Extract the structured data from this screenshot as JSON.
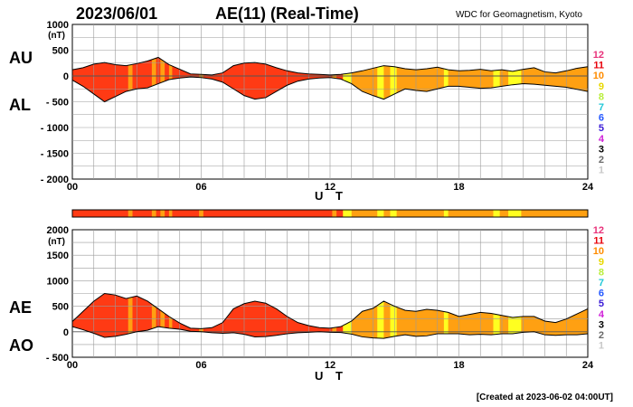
{
  "header": {
    "date": "2023/06/01",
    "title": "AE(11) (Real-Time)",
    "credit": "WDC for Geomagnetism, Kyoto"
  },
  "footer": {
    "created": "[Created at 2023-06-02 04:00UT]"
  },
  "legend": {
    "entries": [
      {
        "label": "12",
        "color": "#e8337b"
      },
      {
        "label": "11",
        "color": "#e8000b"
      },
      {
        "label": "10",
        "color": "#ff8c00"
      },
      {
        "label": "9",
        "color": "#e8d800"
      },
      {
        "label": "8",
        "color": "#b9ee3c"
      },
      {
        "label": "7",
        "color": "#22c8d8"
      },
      {
        "label": "6",
        "color": "#2458ff"
      },
      {
        "label": "5",
        "color": "#3a1ad6"
      },
      {
        "label": "4",
        "color": "#d020d8"
      },
      {
        "label": "3",
        "color": "#000000"
      },
      {
        "label": "2",
        "color": "#6a6a6a"
      },
      {
        "label": "1",
        "color": "#c8c8c8"
      }
    ]
  },
  "colors": {
    "red": "#ff3a14",
    "orange": "#ffa012",
    "yellow": "#ffff20"
  },
  "stations_band": [
    {
      "s": 0,
      "e": 2.6,
      "c": "red"
    },
    {
      "s": 2.6,
      "e": 2.8,
      "c": "orange"
    },
    {
      "s": 2.8,
      "e": 3.7,
      "c": "red"
    },
    {
      "s": 3.7,
      "e": 3.9,
      "c": "orange"
    },
    {
      "s": 3.9,
      "e": 4.1,
      "c": "red"
    },
    {
      "s": 4.1,
      "e": 4.3,
      "c": "orange"
    },
    {
      "s": 4.3,
      "e": 4.5,
      "c": "red"
    },
    {
      "s": 4.5,
      "e": 4.65,
      "c": "orange"
    },
    {
      "s": 4.65,
      "e": 5.9,
      "c": "red"
    },
    {
      "s": 5.9,
      "e": 6.1,
      "c": "orange"
    },
    {
      "s": 6.1,
      "e": 12.1,
      "c": "red"
    },
    {
      "s": 12.1,
      "e": 12.3,
      "c": "orange"
    },
    {
      "s": 12.3,
      "e": 12.6,
      "c": "red"
    },
    {
      "s": 12.6,
      "e": 13.0,
      "c": "yellow"
    },
    {
      "s": 13.0,
      "e": 14.2,
      "c": "orange"
    },
    {
      "s": 14.2,
      "e": 14.5,
      "c": "yellow"
    },
    {
      "s": 14.5,
      "e": 14.8,
      "c": "orange"
    },
    {
      "s": 14.8,
      "e": 15.1,
      "c": "yellow"
    },
    {
      "s": 15.1,
      "e": 17.3,
      "c": "orange"
    },
    {
      "s": 17.3,
      "e": 17.5,
      "c": "yellow"
    },
    {
      "s": 17.5,
      "e": 19.6,
      "c": "orange"
    },
    {
      "s": 19.6,
      "e": 19.9,
      "c": "yellow"
    },
    {
      "s": 19.9,
      "e": 20.3,
      "c": "orange"
    },
    {
      "s": 20.3,
      "e": 20.9,
      "c": "yellow"
    },
    {
      "s": 20.9,
      "e": 24,
      "c": "orange"
    }
  ],
  "chart_data": [
    {
      "type": "area",
      "name_upper": "AU",
      "name_lower": "AL",
      "unit": "(nT)",
      "xlabel": "U T",
      "xlim": [
        0,
        24
      ],
      "ylim": [
        -2000,
        1000
      ],
      "xticks": [
        0,
        6,
        12,
        18,
        24
      ],
      "xtick_labels": [
        "00",
        "06",
        "12",
        "18",
        "24"
      ],
      "yticks": [
        1000,
        500,
        0,
        -500,
        -1000,
        -1500,
        -2000
      ],
      "ytick_labels": [
        "1000",
        "500",
        "0",
        "- 500",
        "- 1000",
        "- 1500",
        "- 2000"
      ],
      "grid": true,
      "x": [
        0,
        0.5,
        1,
        1.5,
        2,
        2.5,
        3,
        3.5,
        4,
        4.5,
        5,
        5.5,
        6,
        6.5,
        7,
        7.5,
        8,
        8.5,
        9,
        9.5,
        10,
        10.5,
        11,
        11.5,
        12,
        12.5,
        13,
        13.5,
        14,
        14.5,
        15,
        15.5,
        16,
        16.5,
        17,
        17.5,
        18,
        18.5,
        19,
        19.5,
        20,
        20.5,
        21,
        21.5,
        22,
        22.5,
        23,
        23.5,
        24
      ],
      "upper": [
        120,
        160,
        230,
        260,
        220,
        200,
        240,
        290,
        360,
        220,
        130,
        40,
        30,
        20,
        60,
        200,
        250,
        260,
        230,
        160,
        100,
        60,
        40,
        30,
        20,
        30,
        60,
        100,
        150,
        200,
        180,
        140,
        120,
        140,
        170,
        120,
        100,
        110,
        130,
        100,
        120,
        90,
        130,
        160,
        80,
        60,
        100,
        150,
        180
      ],
      "lower": [
        -80,
        -200,
        -350,
        -500,
        -400,
        -300,
        -250,
        -230,
        -150,
        -70,
        -40,
        -20,
        -30,
        -60,
        -120,
        -250,
        -380,
        -450,
        -420,
        -300,
        -180,
        -100,
        -60,
        -40,
        -30,
        -60,
        -150,
        -300,
        -380,
        -450,
        -350,
        -250,
        -280,
        -300,
        -250,
        -200,
        -200,
        -220,
        -240,
        -230,
        -200,
        -170,
        -150,
        -160,
        -180,
        -200,
        -220,
        -260,
        -300
      ],
      "colors": [
        {
          "s": 0,
          "e": 2.6,
          "c": "red"
        },
        {
          "s": 2.6,
          "e": 2.8,
          "c": "orange"
        },
        {
          "s": 2.8,
          "e": 3.7,
          "c": "red"
        },
        {
          "s": 3.7,
          "e": 3.9,
          "c": "orange"
        },
        {
          "s": 3.9,
          "e": 4.1,
          "c": "red"
        },
        {
          "s": 4.1,
          "e": 4.3,
          "c": "orange"
        },
        {
          "s": 4.3,
          "e": 4.5,
          "c": "red"
        },
        {
          "s": 4.5,
          "e": 4.65,
          "c": "orange"
        },
        {
          "s": 4.65,
          "e": 5.9,
          "c": "red"
        },
        {
          "s": 5.9,
          "e": 6.1,
          "c": "orange"
        },
        {
          "s": 6.1,
          "e": 12.1,
          "c": "red"
        },
        {
          "s": 12.1,
          "e": 12.3,
          "c": "orange"
        },
        {
          "s": 12.3,
          "e": 12.6,
          "c": "red"
        },
        {
          "s": 12.6,
          "e": 13.0,
          "c": "yellow"
        },
        {
          "s": 13.0,
          "e": 14.2,
          "c": "orange"
        },
        {
          "s": 14.2,
          "e": 14.5,
          "c": "yellow"
        },
        {
          "s": 14.5,
          "e": 14.8,
          "c": "orange"
        },
        {
          "s": 14.8,
          "e": 15.1,
          "c": "yellow"
        },
        {
          "s": 15.1,
          "e": 17.3,
          "c": "orange"
        },
        {
          "s": 17.3,
          "e": 17.5,
          "c": "yellow"
        },
        {
          "s": 17.5,
          "e": 19.6,
          "c": "orange"
        },
        {
          "s": 19.6,
          "e": 19.9,
          "c": "yellow"
        },
        {
          "s": 19.9,
          "e": 20.3,
          "c": "orange"
        },
        {
          "s": 20.3,
          "e": 20.9,
          "c": "yellow"
        },
        {
          "s": 20.9,
          "e": 24,
          "c": "orange"
        }
      ]
    },
    {
      "type": "area",
      "name_upper": "AE",
      "name_lower": "AO",
      "unit": "(nT)",
      "xlabel": "U T",
      "xlim": [
        0,
        24
      ],
      "ylim": [
        -500,
        2000
      ],
      "xticks": [
        0,
        6,
        12,
        18,
        24
      ],
      "xtick_labels": [
        "00",
        "06",
        "12",
        "18",
        "24"
      ],
      "yticks": [
        2000,
        1500,
        1000,
        500,
        0,
        -500
      ],
      "ytick_labels": [
        "2000",
        "1500",
        "1000",
        "500",
        "0",
        "- 500"
      ],
      "grid": true,
      "x": [
        0,
        0.5,
        1,
        1.5,
        2,
        2.5,
        3,
        3.5,
        4,
        4.5,
        5,
        5.5,
        6,
        6.5,
        7,
        7.5,
        8,
        8.5,
        9,
        9.5,
        10,
        10.5,
        11,
        11.5,
        12,
        12.5,
        13,
        13.5,
        14,
        14.5,
        15,
        15.5,
        16,
        16.5,
        17,
        17.5,
        18,
        18.5,
        19,
        19.5,
        20,
        20.5,
        21,
        21.5,
        22,
        22.5,
        23,
        23.5,
        24
      ],
      "upper": [
        200,
        400,
        600,
        750,
        720,
        650,
        700,
        600,
        450,
        300,
        170,
        70,
        60,
        80,
        180,
        450,
        550,
        600,
        560,
        450,
        300,
        180,
        120,
        80,
        70,
        100,
        210,
        400,
        460,
        600,
        500,
        420,
        400,
        440,
        420,
        380,
        300,
        340,
        380,
        360,
        320,
        280,
        300,
        300,
        210,
        180,
        250,
        350,
        450
      ],
      "lower": [
        100,
        40,
        -30,
        -110,
        -90,
        -50,
        0,
        30,
        100,
        70,
        50,
        10,
        0,
        -20,
        -30,
        -20,
        -50,
        -100,
        -95,
        -70,
        -40,
        -20,
        -10,
        0,
        -10,
        -15,
        -45,
        -100,
        -120,
        -130,
        -90,
        -60,
        -90,
        -80,
        -40,
        -40,
        -40,
        -60,
        -50,
        -60,
        -40,
        -40,
        -10,
        0,
        -60,
        -70,
        -60,
        -60,
        -40
      ],
      "colors": [
        {
          "s": 0,
          "e": 2.6,
          "c": "red"
        },
        {
          "s": 2.6,
          "e": 2.8,
          "c": "orange"
        },
        {
          "s": 2.8,
          "e": 3.7,
          "c": "red"
        },
        {
          "s": 3.7,
          "e": 3.9,
          "c": "orange"
        },
        {
          "s": 3.9,
          "e": 4.1,
          "c": "red"
        },
        {
          "s": 4.1,
          "e": 4.3,
          "c": "orange"
        },
        {
          "s": 4.3,
          "e": 4.5,
          "c": "red"
        },
        {
          "s": 4.5,
          "e": 4.65,
          "c": "orange"
        },
        {
          "s": 4.65,
          "e": 5.9,
          "c": "red"
        },
        {
          "s": 5.9,
          "e": 6.1,
          "c": "orange"
        },
        {
          "s": 6.1,
          "e": 12.1,
          "c": "red"
        },
        {
          "s": 12.1,
          "e": 12.3,
          "c": "orange"
        },
        {
          "s": 12.3,
          "e": 12.6,
          "c": "red"
        },
        {
          "s": 12.6,
          "e": 13.0,
          "c": "yellow"
        },
        {
          "s": 13.0,
          "e": 14.2,
          "c": "orange"
        },
        {
          "s": 14.2,
          "e": 14.5,
          "c": "yellow"
        },
        {
          "s": 14.5,
          "e": 14.8,
          "c": "orange"
        },
        {
          "s": 14.8,
          "e": 15.1,
          "c": "yellow"
        },
        {
          "s": 15.1,
          "e": 17.3,
          "c": "orange"
        },
        {
          "s": 17.3,
          "e": 17.5,
          "c": "yellow"
        },
        {
          "s": 17.5,
          "e": 19.6,
          "c": "orange"
        },
        {
          "s": 19.6,
          "e": 19.9,
          "c": "yellow"
        },
        {
          "s": 19.9,
          "e": 20.3,
          "c": "orange"
        },
        {
          "s": 20.3,
          "e": 20.9,
          "c": "yellow"
        },
        {
          "s": 20.9,
          "e": 24,
          "c": "orange"
        }
      ]
    }
  ]
}
